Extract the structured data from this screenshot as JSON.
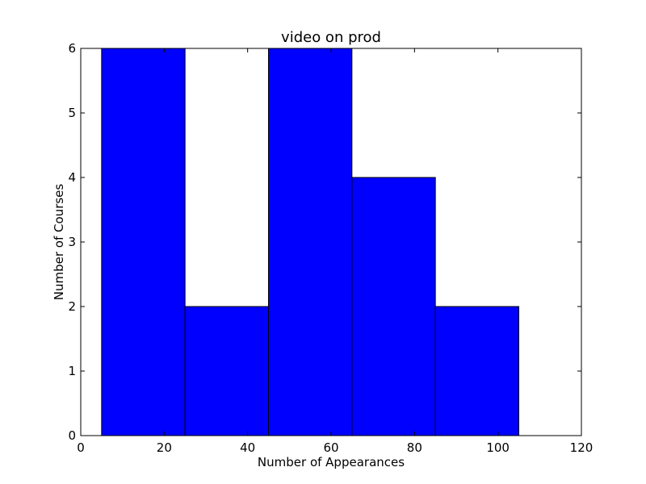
{
  "chart_data": {
    "type": "bar",
    "title": "video on prod",
    "xlabel": "Number of Appearances",
    "ylabel": "Number of Courses",
    "xlim": [
      0,
      120
    ],
    "ylim": [
      0,
      6
    ],
    "xticks": [
      "0",
      "20",
      "40",
      "60",
      "80",
      "100",
      "120"
    ],
    "yticks": [
      "0",
      "1",
      "2",
      "3",
      "4",
      "5",
      "6"
    ],
    "bins": [
      {
        "x0": 5,
        "x1": 25,
        "value": 6
      },
      {
        "x0": 25,
        "x1": 45,
        "value": 2
      },
      {
        "x0": 45,
        "x1": 65,
        "value": 6
      },
      {
        "x0": 65,
        "x1": 85,
        "value": 4
      },
      {
        "x0": 85,
        "x1": 105,
        "value": 2
      }
    ],
    "bar_color": "#0000ff",
    "edge_color": "#000000",
    "grid": false
  }
}
